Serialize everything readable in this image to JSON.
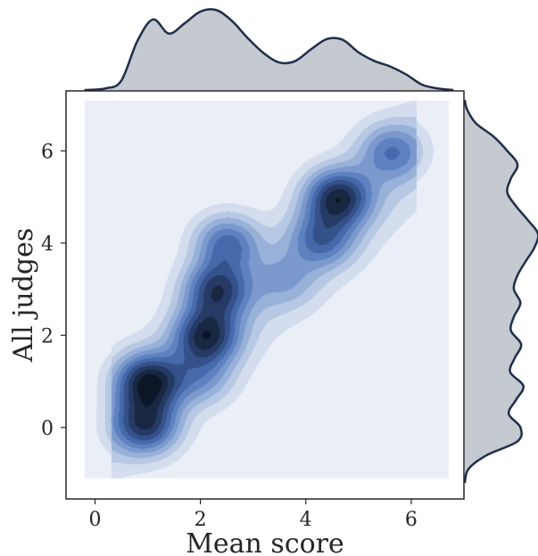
{
  "chart_data": {
    "type": "kde-jointplot",
    "xlabel": "Mean score",
    "ylabel": "All judges",
    "xlim": [
      -0.55,
      7.0
    ],
    "ylim": [
      -1.55,
      7.3
    ],
    "xticks": [
      0,
      2,
      4,
      6
    ],
    "yticks": [
      0,
      2,
      4,
      6
    ],
    "grid": false,
    "background": "#eaeef7",
    "fill_region": {
      "x": [
        -0.2,
        6.7
      ],
      "y": [
        -1.1,
        7.1
      ]
    },
    "palette": [
      "#eaeef7",
      "#d3ddee",
      "#b7c8e4",
      "#98b1d9",
      "#7b99cd",
      "#5e81c0",
      "#4569ab",
      "#34518a",
      "#253b66",
      "#182742",
      "#0d1626"
    ],
    "density_peaks": [
      {
        "x": 1.0,
        "y": 1.0,
        "weight": 1.0
      },
      {
        "x": 0.95,
        "y": 0.05,
        "weight": 0.85
      },
      {
        "x": 2.1,
        "y": 2.0,
        "weight": 0.9
      },
      {
        "x": 2.3,
        "y": 3.0,
        "weight": 0.85
      },
      {
        "x": 2.5,
        "y": 4.0,
        "weight": 0.65
      },
      {
        "x": 2.0,
        "y": 1.1,
        "weight": 0.35
      },
      {
        "x": 4.6,
        "y": 5.0,
        "weight": 0.95
      },
      {
        "x": 4.3,
        "y": 4.1,
        "weight": 0.55
      },
      {
        "x": 5.6,
        "y": 6.0,
        "weight": 0.5
      },
      {
        "x": 3.6,
        "y": 3.2,
        "weight": 0.25
      }
    ],
    "marginal_x": {
      "x": [
        -0.2,
        0.2,
        0.5,
        0.8,
        1.1,
        1.4,
        1.7,
        2.0,
        2.3,
        2.6,
        2.9,
        3.2,
        3.5,
        3.8,
        4.1,
        4.4,
        4.7,
        5.0,
        5.3,
        5.6,
        5.9,
        6.2,
        6.5,
        6.8
      ],
      "density": [
        0.0,
        0.02,
        0.12,
        0.62,
        0.9,
        0.72,
        0.85,
        1.0,
        1.02,
        0.88,
        0.66,
        0.47,
        0.35,
        0.37,
        0.52,
        0.65,
        0.64,
        0.48,
        0.37,
        0.3,
        0.2,
        0.07,
        0.02,
        0.0
      ]
    },
    "marginal_y": {
      "y": [
        -1.2,
        -0.9,
        -0.6,
        -0.3,
        0.0,
        0.3,
        0.6,
        0.9,
        1.2,
        1.5,
        1.8,
        2.1,
        2.4,
        2.7,
        3.0,
        3.3,
        3.6,
        3.9,
        4.2,
        4.5,
        4.8,
        5.1,
        5.4,
        5.7,
        6.0,
        6.3,
        6.6,
        6.9,
        7.1
      ],
      "density": [
        0.0,
        0.05,
        0.3,
        0.72,
        0.76,
        0.6,
        0.7,
        0.8,
        0.62,
        0.68,
        0.77,
        0.63,
        0.67,
        0.76,
        0.67,
        0.72,
        0.83,
        0.95,
        1.0,
        0.86,
        0.7,
        0.58,
        0.63,
        0.72,
        0.58,
        0.4,
        0.15,
        0.03,
        0.0
      ]
    },
    "marginal_style": {
      "fill": "#c5c9d0",
      "stroke": "#1f2f4b"
    }
  }
}
